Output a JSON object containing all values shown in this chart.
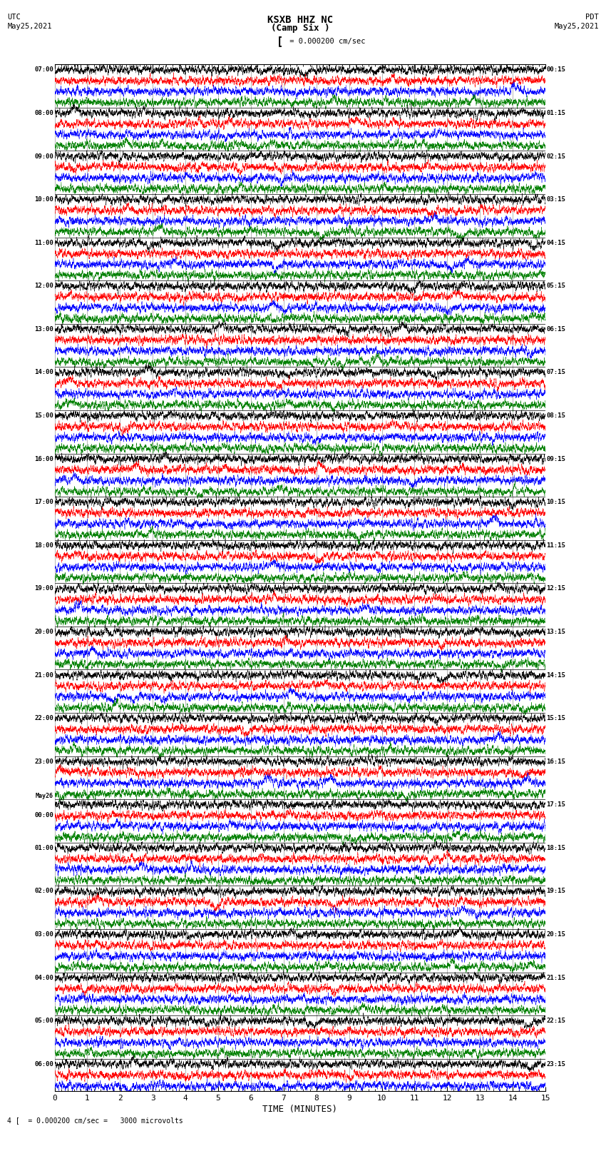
{
  "title_line1": "KSXB HHZ NC",
  "title_line2": "(Camp Six )",
  "scale_text": "= 0.000200 cm/sec",
  "bottom_scale_text": "= 0.000200 cm/sec =   3000 microvolts",
  "left_date_line1": "UTC",
  "left_date_line2": "May25,2021",
  "right_date_line1": "PDT",
  "right_date_line2": "May25,2021",
  "xlabel": "TIME (MINUTES)",
  "left_times": [
    "07:00",
    "",
    "",
    "",
    "08:00",
    "",
    "",
    "",
    "09:00",
    "",
    "",
    "",
    "10:00",
    "",
    "",
    "",
    "11:00",
    "",
    "",
    "",
    "12:00",
    "",
    "",
    "",
    "13:00",
    "",
    "",
    "",
    "14:00",
    "",
    "",
    "",
    "15:00",
    "",
    "",
    "",
    "16:00",
    "",
    "",
    "",
    "17:00",
    "",
    "",
    "",
    "18:00",
    "",
    "",
    "",
    "19:00",
    "",
    "",
    "",
    "20:00",
    "",
    "",
    "",
    "21:00",
    "",
    "",
    "",
    "22:00",
    "",
    "",
    "",
    "23:00",
    "",
    "",
    "",
    "May26",
    "00:00",
    "",
    "",
    "01:00",
    "",
    "",
    "",
    "02:00",
    "",
    "",
    "",
    "03:00",
    "",
    "",
    "",
    "04:00",
    "",
    "",
    "",
    "05:00",
    "",
    "",
    "",
    "06:00",
    "",
    ""
  ],
  "right_times": [
    "00:15",
    "",
    "",
    "",
    "01:15",
    "",
    "",
    "",
    "02:15",
    "",
    "",
    "",
    "03:15",
    "",
    "",
    "",
    "04:15",
    "",
    "",
    "",
    "05:15",
    "",
    "",
    "",
    "06:15",
    "",
    "",
    "",
    "07:15",
    "",
    "",
    "",
    "08:15",
    "",
    "",
    "",
    "09:15",
    "",
    "",
    "",
    "10:15",
    "",
    "",
    "",
    "11:15",
    "",
    "",
    "",
    "12:15",
    "",
    "",
    "",
    "13:15",
    "",
    "",
    "",
    "14:15",
    "",
    "",
    "",
    "15:15",
    "",
    "",
    "",
    "16:15",
    "",
    "",
    "",
    "17:15",
    "",
    "",
    "",
    "18:15",
    "",
    "",
    "",
    "19:15",
    "",
    "",
    "",
    "20:15",
    "",
    "",
    "",
    "21:15",
    "",
    "",
    "",
    "22:15",
    "",
    "",
    "",
    "23:15",
    "",
    ""
  ],
  "colors": [
    "black",
    "red",
    "blue",
    "green"
  ],
  "num_rows": 95,
  "x_min": 0,
  "x_max": 15,
  "x_ticks": [
    0,
    1,
    2,
    3,
    4,
    5,
    6,
    7,
    8,
    9,
    10,
    11,
    12,
    13,
    14,
    15
  ],
  "background_color": "white",
  "figsize": [
    8.5,
    16.13
  ],
  "dpi": 100
}
